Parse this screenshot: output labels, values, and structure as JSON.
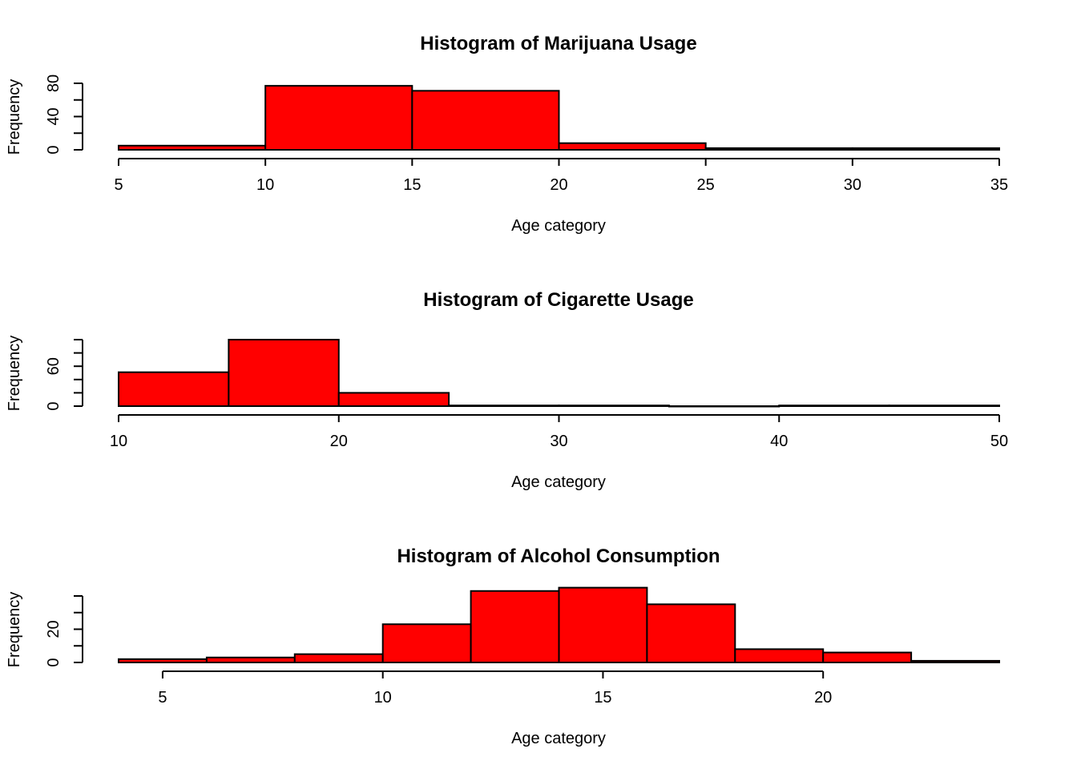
{
  "colors": {
    "bar_fill": "#ff0000",
    "bar_stroke": "#000000",
    "background": "#ffffff"
  },
  "chart_data": [
    {
      "type": "bar",
      "title": "Histogram of Marijuana Usage",
      "xlabel": "Age category",
      "ylabel": "Frequency",
      "bin_edges": [
        5,
        10,
        15,
        20,
        25,
        30,
        35
      ],
      "values": [
        5,
        77,
        71,
        8,
        2,
        2
      ],
      "xlim": [
        5,
        35
      ],
      "ylim": [
        0,
        80
      ],
      "xticks": [
        5,
        10,
        15,
        20,
        25,
        30,
        35
      ],
      "xtick_labels": [
        "5",
        "10",
        "15",
        "20",
        "25",
        "30",
        "35"
      ],
      "yticks": [
        0,
        20,
        40,
        60,
        80
      ],
      "ytick_labels": [
        "0",
        "",
        "40",
        "",
        "80"
      ],
      "grid": false
    },
    {
      "type": "bar",
      "title": "Histogram of Cigarette Usage",
      "xlabel": "Age category",
      "ylabel": "Frequency",
      "bin_edges": [
        10,
        15,
        20,
        25,
        30,
        35,
        40,
        45,
        50
      ],
      "values": [
        51,
        100,
        20,
        1,
        1,
        0,
        1,
        1
      ],
      "xlim": [
        10,
        50
      ],
      "ylim": [
        0,
        100
      ],
      "xticks": [
        10,
        20,
        30,
        40,
        50
      ],
      "xtick_labels": [
        "10",
        "20",
        "30",
        "40",
        "50"
      ],
      "yticks": [
        0,
        20,
        40,
        60,
        80,
        100
      ],
      "ytick_labels": [
        "0",
        "",
        "",
        "60",
        "",
        ""
      ],
      "grid": false
    },
    {
      "type": "bar",
      "title": "Histogram of Alcohol Consumption",
      "xlabel": "Age category",
      "ylabel": "Frequency",
      "bin_edges": [
        4,
        6,
        8,
        10,
        12,
        14,
        16,
        18,
        20,
        22,
        24
      ],
      "values": [
        2,
        3,
        5,
        23,
        43,
        45,
        35,
        8,
        6,
        1
      ],
      "xlim": [
        4,
        24
      ],
      "ylim": [
        0,
        40
      ],
      "xticks": [
        5,
        10,
        15,
        20
      ],
      "xtick_labels": [
        "5",
        "10",
        "15",
        "20"
      ],
      "yticks": [
        0,
        10,
        20,
        30,
        40
      ],
      "ytick_labels": [
        "0",
        "",
        "20",
        "",
        ""
      ],
      "grid": false
    }
  ]
}
